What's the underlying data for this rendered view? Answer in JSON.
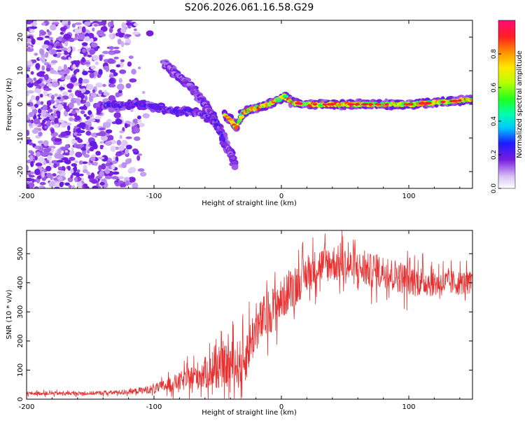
{
  "title": "S206.2026.061.16.58.G29",
  "chart_data": [
    {
      "type": "heatmap",
      "title": "S206.2026.061.16.58.G29",
      "xlabel": "Height of straight line (km)",
      "ylabel": "Frequency (Hz)",
      "xlim": [
        -200,
        150
      ],
      "ylim": [
        -25,
        25
      ],
      "xticks": [
        -200,
        -100,
        0,
        100
      ],
      "xtick_labels": [
        "-200",
        "-100",
        "0",
        "100"
      ],
      "yticks": [
        -20,
        -10,
        0,
        10,
        20
      ],
      "ytick_labels": [
        "-20",
        "-10",
        "0",
        "10",
        "20"
      ],
      "colorbar": {
        "label": "Normalized spectral amplitude",
        "range": [
          0,
          1
        ],
        "ticks": [
          0.0,
          0.2,
          0.4,
          0.6,
          0.8
        ],
        "tick_labels": [
          "0.0",
          "0.2",
          "0.4",
          "0.6",
          "0.8"
        ]
      },
      "series": [
        {
          "name": "noise-field",
          "x_range": [
            -200,
            -100
          ],
          "y_range": [
            -25,
            25
          ],
          "amplitude_range": [
            0.05,
            0.2
          ]
        },
        {
          "name": "upper-branch",
          "points": [
            [
              -92,
              12
            ],
            [
              -78,
              7.5
            ],
            [
              -70,
              5
            ],
            [
              -62,
              1
            ],
            [
              -55,
              -3
            ],
            [
              -48,
              -8
            ],
            [
              -42,
              -13
            ],
            [
              -38,
              -16
            ],
            [
              -36,
              -18
            ]
          ],
          "amplitude": 0.2
        },
        {
          "name": "lower-branch",
          "points": [
            [
              -140,
              0
            ],
            [
              -125,
              -0.5
            ],
            [
              -115,
              0.5
            ],
            [
              -105,
              -0.5
            ],
            [
              -95,
              -1
            ],
            [
              -85,
              -2
            ],
            [
              -72,
              -2
            ],
            [
              -62,
              -3
            ],
            [
              -52,
              -5
            ],
            [
              -45,
              -11
            ]
          ],
          "amplitude": 0.25
        },
        {
          "name": "main-line",
          "points": [
            [
              -45,
              -3
            ],
            [
              -40,
              -4.5
            ],
            [
              -36,
              -7
            ],
            [
              -30,
              -2.5
            ],
            [
              -20,
              -1
            ],
            [
              -10,
              0
            ],
            [
              -2,
              1.5
            ],
            [
              2,
              2.5
            ],
            [
              8,
              0.5
            ],
            [
              20,
              0
            ],
            [
              50,
              0
            ],
            [
              100,
              0
            ],
            [
              120,
              0.5
            ],
            [
              150,
              1.5
            ]
          ],
          "amplitude": 0.9
        }
      ]
    },
    {
      "type": "line",
      "xlabel": "Height of straight line (km)",
      "ylabel": "SNR (10 * v/v)",
      "xlim": [
        -200,
        150
      ],
      "ylim": [
        0,
        580
      ],
      "xticks": [
        -200,
        -100,
        0,
        100
      ],
      "xtick_labels": [
        "-200",
        "-100",
        "0",
        "100"
      ],
      "yticks": [
        0,
        100,
        200,
        300,
        400,
        500
      ],
      "ytick_labels": [
        "0",
        "100",
        "200",
        "300",
        "400",
        "500"
      ],
      "series": [
        {
          "name": "SNR",
          "color": "#e83030",
          "envelope_x": [
            -200,
            -150,
            -120,
            -100,
            -80,
            -60,
            -50,
            -40,
            -30,
            -25,
            -20,
            -15,
            -10,
            0,
            10,
            20,
            30,
            40,
            50,
            60,
            70,
            80,
            100,
            120,
            150
          ],
          "envelope_y": [
            20,
            20,
            25,
            35,
            60,
            90,
            100,
            120,
            120,
            190,
            240,
            270,
            300,
            340,
            390,
            430,
            460,
            470,
            460,
            450,
            440,
            440,
            410,
            400,
            400
          ],
          "noise_amplitude": [
            8,
            8,
            10,
            20,
            40,
            70,
            80,
            100,
            110,
            110,
            100,
            100,
            100,
            90,
            90,
            80,
            80,
            80,
            80,
            75,
            75,
            70,
            70,
            60,
            50
          ]
        }
      ]
    }
  ]
}
